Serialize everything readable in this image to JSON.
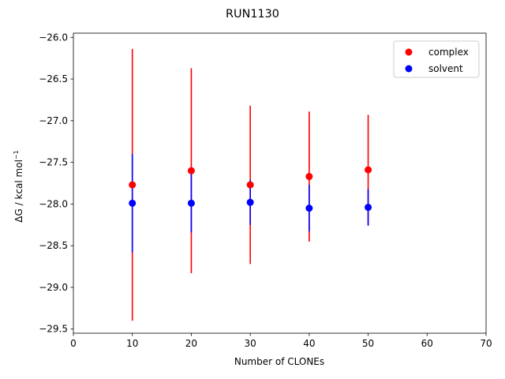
{
  "chart_data": {
    "type": "scatter",
    "title": "RUN1130",
    "xlabel": "Number of CLONEs",
    "ylabel": "ΔG / kcal mol",
    "ylabel_sup": "−1",
    "xlim": [
      0,
      70
    ],
    "ylim": [
      -29.55,
      -25.95
    ],
    "xticks": [
      0,
      10,
      20,
      30,
      40,
      50,
      60,
      70
    ],
    "yticks": [
      -26.0,
      -26.5,
      -27.0,
      -27.5,
      -28.0,
      -28.5,
      -29.0,
      -29.5
    ],
    "ytick_labels": [
      "−26.0",
      "−26.5",
      "−27.0",
      "−27.5",
      "−28.0",
      "−28.5",
      "−29.0",
      "−29.5"
    ],
    "grid": false,
    "legend_position": "top-right",
    "series": [
      {
        "name": "complex",
        "color": "#ff0000",
        "x": [
          10,
          20,
          30,
          40,
          50
        ],
        "y": [
          -27.77,
          -27.6,
          -27.77,
          -27.67,
          -27.59
        ],
        "yerr": [
          1.63,
          1.23,
          0.95,
          0.78,
          0.66
        ]
      },
      {
        "name": "solvent",
        "color": "#0000ff",
        "x": [
          10,
          20,
          30,
          40,
          50
        ],
        "y": [
          -27.99,
          -27.99,
          -27.98,
          -28.05,
          -28.04
        ],
        "yerr": [
          0.59,
          0.35,
          0.27,
          0.28,
          0.22
        ]
      }
    ]
  }
}
